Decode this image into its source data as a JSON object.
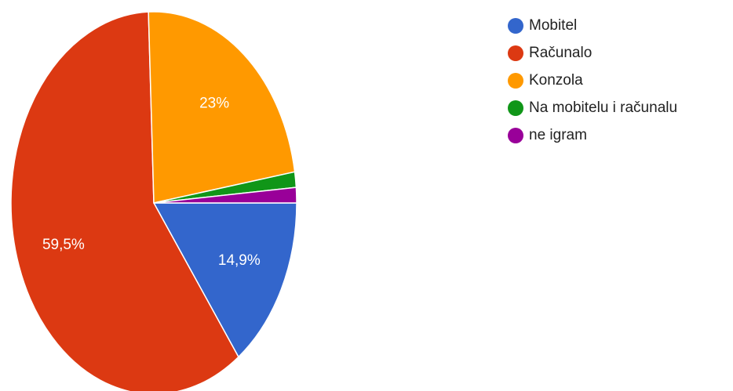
{
  "chart_data": {
    "type": "pie",
    "categories": [
      "Mobitel",
      "Računalo",
      "Konzola",
      "Na mobitelu i računalu",
      "ne igram"
    ],
    "values": [
      14.9,
      59.5,
      23,
      1.3,
      1.3
    ],
    "value_labels": [
      "14,9%",
      "59,5%",
      "23%",
      null,
      null
    ],
    "colors": [
      "#3366cc",
      "#dc3912",
      "#ff9900",
      "#109618",
      "#990099"
    ],
    "legend": "right"
  }
}
